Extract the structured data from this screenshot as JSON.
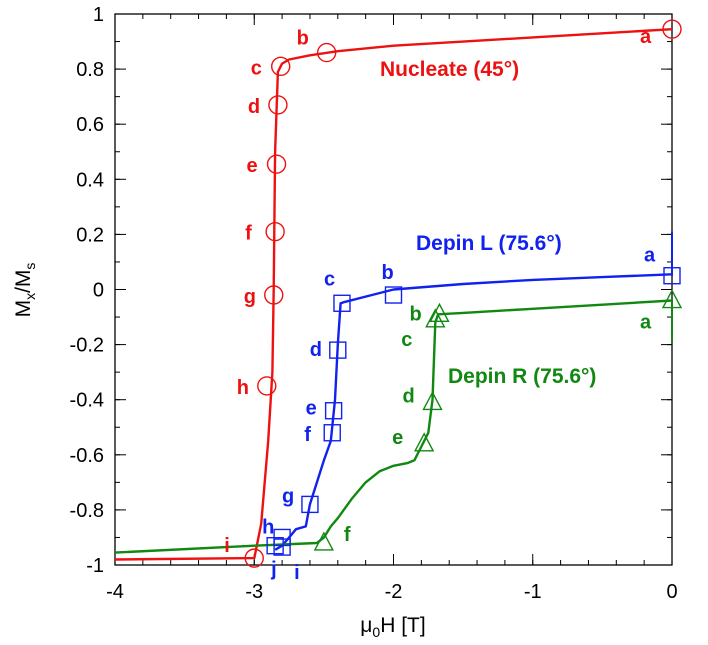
{
  "chart_data": {
    "type": "line",
    "xlabel": {
      "pre": "μ",
      "sub": "0",
      "post": "H [T]"
    },
    "ylabel": {
      "pre": "M",
      "sub1": "x",
      "mid": "/M",
      "sub2": "s"
    },
    "xlim": [
      -4,
      0
    ],
    "ylim": [
      -1,
      1
    ],
    "xticks": [
      -4,
      -3,
      -2,
      -1,
      0
    ],
    "xtick_labels": [
      "-4",
      "-3",
      "-2",
      "-1",
      "0"
    ],
    "yticks": [
      -1,
      -0.8,
      -0.6,
      -0.4,
      -0.2,
      0,
      0.2,
      0.4,
      0.6,
      0.8,
      1
    ],
    "ytick_labels": [
      "-1",
      "-0.8",
      "-0.6",
      "-0.4",
      "-0.2",
      "0",
      "0.2",
      "0.4",
      "0.6",
      "0.8",
      "1"
    ],
    "grid": false,
    "series": [
      {
        "name": "Nucleate (45°)",
        "color": "#ee1111",
        "marker": "circle",
        "curve": [
          [
            0,
            0.945
          ],
          [
            -0.5,
            0.93
          ],
          [
            -1.0,
            0.915
          ],
          [
            -1.5,
            0.9
          ],
          [
            -2.0,
            0.885
          ],
          [
            -2.4,
            0.865
          ],
          [
            -2.6,
            0.85
          ],
          [
            -2.75,
            0.835
          ],
          [
            -2.8,
            0.82
          ],
          [
            -2.83,
            0.79
          ],
          [
            -2.85,
            0.5
          ],
          [
            -2.86,
            0.0
          ],
          [
            -2.87,
            -0.3
          ],
          [
            -2.9,
            -0.55
          ],
          [
            -2.95,
            -0.85
          ],
          [
            -3.0,
            -0.975
          ],
          [
            -4.0,
            -0.98
          ]
        ],
        "points": [
          {
            "label": "a",
            "x": 0.0,
            "y": 0.945
          },
          {
            "label": "b",
            "x": -2.48,
            "y": 0.86
          },
          {
            "label": "c",
            "x": -2.81,
            "y": 0.81
          },
          {
            "label": "d",
            "x": -2.83,
            "y": 0.67
          },
          {
            "label": "e",
            "x": -2.84,
            "y": 0.455
          },
          {
            "label": "f",
            "x": -2.85,
            "y": 0.21
          },
          {
            "label": "g",
            "x": -2.86,
            "y": -0.02
          },
          {
            "label": "h",
            "x": -2.91,
            "y": -0.35
          },
          {
            "label": "i",
            "x": -3.0,
            "y": -0.975
          }
        ]
      },
      {
        "name": "Depin L (75.6°)",
        "color": "#1122ee",
        "marker": "square",
        "curve": [
          [
            0,
            0.055
          ],
          [
            -0.5,
            0.045
          ],
          [
            -1.0,
            0.035
          ],
          [
            -1.5,
            0.02
          ],
          [
            -2.0,
            0.0
          ],
          [
            -2.35,
            -0.045
          ],
          [
            -2.38,
            -0.05
          ],
          [
            -2.4,
            -0.2
          ],
          [
            -2.42,
            -0.4
          ],
          [
            -2.45,
            -0.55
          ],
          [
            -2.5,
            -0.62
          ],
          [
            -2.55,
            -0.7
          ],
          [
            -2.6,
            -0.78
          ],
          [
            -2.63,
            -0.86
          ],
          [
            -2.7,
            -0.87
          ],
          [
            -2.75,
            -0.9
          ],
          [
            -2.8,
            -0.93
          ],
          [
            -2.85,
            -0.945
          ]
        ],
        "points": [
          {
            "label": "a",
            "x": 0.0,
            "y": 0.05
          },
          {
            "label": "b",
            "x": -2.0,
            "y": -0.02
          },
          {
            "label": "c",
            "x": -2.37,
            "y": -0.05
          },
          {
            "label": "d",
            "x": -2.4,
            "y": -0.22
          },
          {
            "label": "e",
            "x": -2.43,
            "y": -0.44
          },
          {
            "label": "f",
            "x": -2.44,
            "y": -0.52
          },
          {
            "label": "g",
            "x": -2.6,
            "y": -0.78
          },
          {
            "label": "h",
            "x": -2.8,
            "y": -0.9
          },
          {
            "label": "i",
            "x": -2.8,
            "y": -0.935
          },
          {
            "label": "j",
            "x": -2.85,
            "y": -0.93
          }
        ]
      },
      {
        "name": "Depin R (75.6°)",
        "color": "#118811",
        "marker": "triangle",
        "curve": [
          [
            0,
            -0.04
          ],
          [
            -0.5,
            -0.055
          ],
          [
            -1.0,
            -0.07
          ],
          [
            -1.5,
            -0.085
          ],
          [
            -1.68,
            -0.09
          ],
          [
            -1.7,
            -0.12
          ],
          [
            -1.72,
            -0.4
          ],
          [
            -1.75,
            -0.52
          ],
          [
            -1.8,
            -0.57
          ],
          [
            -1.85,
            -0.62
          ],
          [
            -1.9,
            -0.63
          ],
          [
            -2.0,
            -0.64
          ],
          [
            -2.1,
            -0.66
          ],
          [
            -2.2,
            -0.7
          ],
          [
            -2.3,
            -0.76
          ],
          [
            -2.4,
            -0.83
          ],
          [
            -2.45,
            -0.86
          ],
          [
            -2.5,
            -0.9
          ],
          [
            -2.55,
            -0.92
          ],
          [
            -3.0,
            -0.93
          ],
          [
            -4.0,
            -0.955
          ]
        ],
        "points": [
          {
            "label": "a",
            "x": 0.0,
            "y": -0.04
          },
          {
            "label": "b",
            "x": -1.67,
            "y": -0.09
          },
          {
            "label": "c",
            "x": -1.7,
            "y": -0.11
          },
          {
            "label": "d",
            "x": -1.72,
            "y": -0.41
          },
          {
            "label": "e",
            "x": -1.78,
            "y": -0.56
          },
          {
            "label": "f",
            "x": -2.5,
            "y": -0.92
          }
        ]
      }
    ],
    "annotations": [
      "Nucleate (45°)",
      "Depin L (75.6°)",
      "Depin R (75.6°)"
    ]
  }
}
